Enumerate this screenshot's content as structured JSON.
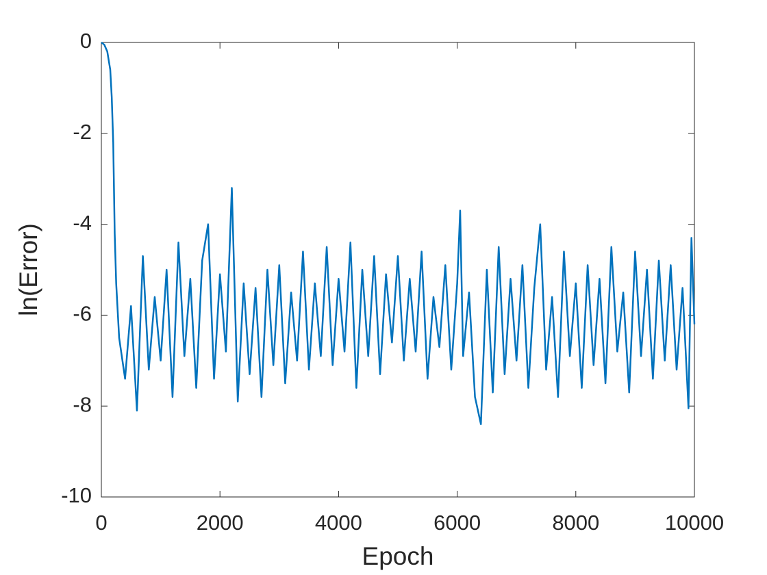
{
  "chart_data": {
    "type": "line",
    "xlabel": "Epoch",
    "ylabel": "ln(Error)",
    "xlim": [
      0,
      10000
    ],
    "ylim": [
      -10,
      0
    ],
    "xticks": [
      0,
      2000,
      4000,
      6000,
      8000,
      10000
    ],
    "yticks": [
      -10,
      -8,
      -6,
      -4,
      -2,
      0
    ],
    "grid": false,
    "x": [
      0,
      50,
      100,
      150,
      175,
      200,
      225,
      250,
      300,
      400,
      500,
      600,
      700,
      800,
      900,
      1000,
      1100,
      1200,
      1300,
      1400,
      1500,
      1600,
      1700,
      1800,
      1900,
      2000,
      2100,
      2200,
      2300,
      2400,
      2500,
      2600,
      2700,
      2800,
      2900,
      3000,
      3100,
      3200,
      3300,
      3400,
      3500,
      3600,
      3700,
      3800,
      3900,
      4000,
      4100,
      4200,
      4300,
      4400,
      4500,
      4600,
      4700,
      4800,
      4900,
      5000,
      5100,
      5200,
      5300,
      5400,
      5500,
      5600,
      5700,
      5800,
      5900,
      6000,
      6050,
      6100,
      6200,
      6300,
      6400,
      6500,
      6600,
      6700,
      6800,
      6900,
      7000,
      7100,
      7200,
      7300,
      7400,
      7500,
      7600,
      7700,
      7800,
      7900,
      8000,
      8100,
      8200,
      8300,
      8400,
      8500,
      8600,
      8700,
      8800,
      8900,
      9000,
      9100,
      9200,
      9300,
      9400,
      9500,
      9600,
      9700,
      9800,
      9900,
      9950,
      10000
    ],
    "series": [
      {
        "color": "#0072bd",
        "values": [
          0,
          -0.05,
          -0.2,
          -0.6,
          -1.2,
          -2.2,
          -4.2,
          -5.3,
          -6.5,
          -7.4,
          -5.8,
          -8.1,
          -4.7,
          -7.2,
          -5.6,
          -7.0,
          -5.0,
          -7.8,
          -4.4,
          -6.9,
          -5.2,
          -7.6,
          -4.8,
          -4.0,
          -7.4,
          -5.1,
          -6.8,
          -3.2,
          -7.9,
          -5.3,
          -7.3,
          -5.4,
          -7.8,
          -5.0,
          -7.1,
          -4.9,
          -7.5,
          -5.5,
          -7.0,
          -4.6,
          -7.2,
          -5.3,
          -6.9,
          -4.5,
          -7.1,
          -5.2,
          -6.8,
          -4.4,
          -7.6,
          -5.0,
          -6.9,
          -4.7,
          -7.3,
          -5.1,
          -6.6,
          -4.7,
          -7.0,
          -5.2,
          -6.8,
          -4.6,
          -7.4,
          -5.6,
          -6.7,
          -4.9,
          -7.2,
          -5.3,
          -3.7,
          -6.9,
          -5.5,
          -7.8,
          -8.4,
          -5.0,
          -7.7,
          -4.5,
          -7.3,
          -5.2,
          -7.0,
          -4.9,
          -7.6,
          -5.4,
          -4.0,
          -7.2,
          -5.6,
          -7.8,
          -4.6,
          -6.9,
          -5.3,
          -7.6,
          -4.9,
          -7.1,
          -5.2,
          -7.5,
          -4.5,
          -6.8,
          -5.5,
          -7.7,
          -4.6,
          -6.9,
          -5.0,
          -7.4,
          -4.8,
          -7.0,
          -4.9,
          -7.2,
          -5.4,
          -8.05,
          -4.3,
          -6.2
        ]
      }
    ]
  }
}
